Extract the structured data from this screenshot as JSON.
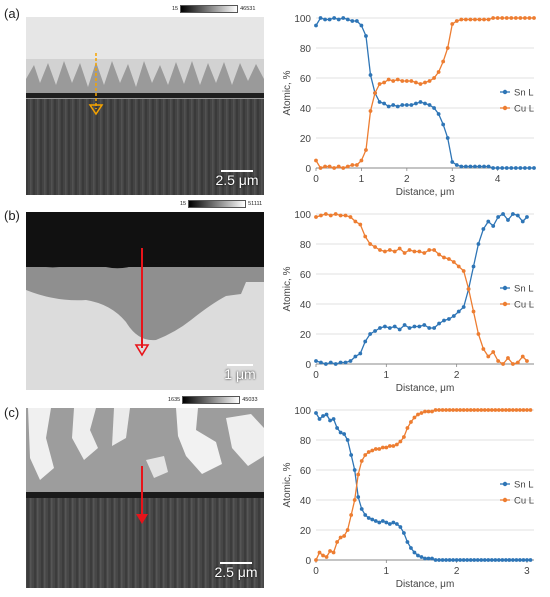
{
  "panels": [
    {
      "label": "(a)",
      "colorbar": {
        "min": "15",
        "max": "46531"
      },
      "scale_bar": "2.5 μm",
      "arrow_color": "#f5a300",
      "chart_data": {
        "type": "line",
        "xlabel": "Distance, μm",
        "ylabel": "Atomic, %",
        "xlim": [
          0,
          4.8
        ],
        "ylim": [
          0,
          100
        ],
        "xticks": [
          "0",
          "1",
          "2",
          "3",
          "4"
        ],
        "yticks": [
          "0",
          "20",
          "40",
          "60",
          "80",
          "100"
        ],
        "grid": true,
        "legend_position": "right",
        "series": [
          {
            "name": "Sn L",
            "color": "#2e75b6",
            "x": [
              0,
              0.1,
              0.2,
              0.3,
              0.4,
              0.5,
              0.6,
              0.7,
              0.8,
              0.9,
              1.0,
              1.1,
              1.2,
              1.3,
              1.4,
              1.5,
              1.6,
              1.7,
              1.8,
              1.9,
              2.0,
              2.1,
              2.2,
              2.3,
              2.4,
              2.5,
              2.6,
              2.7,
              2.8,
              2.9,
              3.0,
              3.1,
              3.2,
              3.3,
              3.4,
              3.5,
              3.6,
              3.7,
              3.8,
              3.9,
              4.0,
              4.1,
              4.2,
              4.3,
              4.4,
              4.5,
              4.6,
              4.7,
              4.8
            ],
            "y": [
              95,
              100,
              99,
              99,
              100,
              99,
              100,
              99,
              98,
              98,
              95,
              88,
              62,
              50,
              44,
              43,
              41,
              42,
              41,
              42,
              42,
              42,
              43,
              44,
              43,
              42,
              40,
              36,
              29,
              20,
              4,
              2,
              1,
              1,
              1,
              1,
              1,
              1,
              1,
              0,
              0,
              0,
              0,
              0,
              0,
              0,
              0,
              0,
              0
            ]
          },
          {
            "name": "Cu L",
            "color": "#ed7d31",
            "x": [
              0,
              0.1,
              0.2,
              0.3,
              0.4,
              0.5,
              0.6,
              0.7,
              0.8,
              0.9,
              1.0,
              1.1,
              1.2,
              1.3,
              1.4,
              1.5,
              1.6,
              1.7,
              1.8,
              1.9,
              2.0,
              2.1,
              2.2,
              2.3,
              2.4,
              2.5,
              2.6,
              2.7,
              2.8,
              2.9,
              3.0,
              3.1,
              3.2,
              3.3,
              3.4,
              3.5,
              3.6,
              3.7,
              3.8,
              3.9,
              4.0,
              4.1,
              4.2,
              4.3,
              4.4,
              4.5,
              4.6,
              4.7,
              4.8
            ],
            "y": [
              5,
              0,
              1,
              1,
              0,
              1,
              0,
              1,
              2,
              2,
              5,
              12,
              38,
              50,
              56,
              57,
              59,
              58,
              59,
              58,
              58,
              58,
              57,
              56,
              57,
              58,
              60,
              64,
              71,
              80,
              96,
              98,
              99,
              99,
              99,
              99,
              99,
              99,
              99,
              100,
              100,
              100,
              100,
              100,
              100,
              100,
              100,
              100,
              100
            ]
          }
        ]
      }
    },
    {
      "label": "(b)",
      "colorbar": {
        "min": "15",
        "max": "51111"
      },
      "scale_bar": "1 μm",
      "arrow_color": "#e8141a",
      "chart_data": {
        "type": "line",
        "xlabel": "Distance, μm",
        "ylabel": "Atomic, %",
        "xlim": [
          0,
          3.1
        ],
        "ylim": [
          0,
          100
        ],
        "xticks": [
          "0",
          "1",
          "2"
        ],
        "yticks": [
          "0",
          "20",
          "40",
          "60",
          "80",
          "100"
        ],
        "grid": true,
        "legend_position": "right",
        "series": [
          {
            "name": "Sn L",
            "color": "#2e75b6",
            "x": [
              0,
              0.07,
              0.14,
              0.21,
              0.28,
              0.35,
              0.42,
              0.49,
              0.56,
              0.63,
              0.7,
              0.77,
              0.84,
              0.91,
              0.98,
              1.05,
              1.12,
              1.19,
              1.26,
              1.33,
              1.4,
              1.47,
              1.54,
              1.61,
              1.68,
              1.75,
              1.82,
              1.89,
              1.96,
              2.03,
              2.1,
              2.17,
              2.24,
              2.31,
              2.38,
              2.45,
              2.52,
              2.59,
              2.66,
              2.73,
              2.8,
              2.87,
              2.94,
              3.0
            ],
            "y": [
              2,
              1,
              0,
              1,
              0,
              1,
              1,
              2,
              5,
              7,
              15,
              20,
              22,
              24,
              25,
              24,
              25,
              23,
              26,
              24,
              25,
              25,
              26,
              24,
              24,
              27,
              29,
              30,
              32,
              35,
              38,
              50,
              65,
              80,
              90,
              95,
              92,
              98,
              100,
              96,
              100,
              99,
              95,
              98
            ]
          },
          {
            "name": "Cu L",
            "color": "#ed7d31",
            "x": [
              0,
              0.07,
              0.14,
              0.21,
              0.28,
              0.35,
              0.42,
              0.49,
              0.56,
              0.63,
              0.7,
              0.77,
              0.84,
              0.91,
              0.98,
              1.05,
              1.12,
              1.19,
              1.26,
              1.33,
              1.4,
              1.47,
              1.54,
              1.61,
              1.68,
              1.75,
              1.82,
              1.89,
              1.96,
              2.03,
              2.1,
              2.17,
              2.24,
              2.31,
              2.38,
              2.45,
              2.52,
              2.59,
              2.66,
              2.73,
              2.8,
              2.87,
              2.94,
              3.0
            ],
            "y": [
              98,
              99,
              100,
              99,
              100,
              99,
              99,
              98,
              95,
              93,
              85,
              80,
              78,
              76,
              75,
              76,
              75,
              77,
              74,
              76,
              75,
              75,
              74,
              76,
              76,
              73,
              71,
              70,
              68,
              65,
              62,
              50,
              35,
              20,
              10,
              5,
              8,
              2,
              0,
              4,
              0,
              1,
              5,
              2
            ]
          }
        ]
      }
    },
    {
      "label": "(c)",
      "colorbar": {
        "min": "1635",
        "max": "45033"
      },
      "scale_bar": "2.5 μm",
      "arrow_color": "#e8141a",
      "chart_data": {
        "type": "line",
        "xlabel": "Distance, μm",
        "ylabel": "Atomic, %",
        "xlim": [
          0,
          3.1
        ],
        "ylim": [
          0,
          100
        ],
        "xticks": [
          "0",
          "1",
          "2",
          "3"
        ],
        "yticks": [
          "0",
          "20",
          "40",
          "60",
          "80",
          "100"
        ],
        "grid": true,
        "legend_position": "right",
        "series": [
          {
            "name": "Sn L",
            "color": "#2e75b6",
            "x": [
              0,
              0.05,
              0.1,
              0.15,
              0.2,
              0.25,
              0.3,
              0.35,
              0.4,
              0.45,
              0.5,
              0.55,
              0.6,
              0.65,
              0.7,
              0.75,
              0.8,
              0.85,
              0.9,
              0.95,
              1.0,
              1.05,
              1.1,
              1.15,
              1.2,
              1.25,
              1.3,
              1.35,
              1.4,
              1.45,
              1.5,
              1.55,
              1.6,
              1.65,
              1.7,
              1.75,
              1.8,
              1.85,
              1.9,
              1.95,
              2.0,
              2.05,
              2.1,
              2.15,
              2.2,
              2.25,
              2.3,
              2.35,
              2.4,
              2.45,
              2.5,
              2.55,
              2.6,
              2.65,
              2.7,
              2.75,
              2.8,
              2.85,
              2.9,
              2.95,
              3.0,
              3.05
            ],
            "y": [
              98,
              94,
              96,
              97,
              93,
              94,
              88,
              85,
              84,
              80,
              70,
              60,
              42,
              34,
              30,
              28,
              27,
              26,
              25,
              26,
              25,
              24,
              25,
              24,
              22,
              18,
              12,
              8,
              5,
              3,
              2,
              1,
              1,
              1,
              0,
              0,
              0,
              0,
              0,
              0,
              0,
              0,
              0,
              0,
              0,
              0,
              0,
              0,
              0,
              0,
              0,
              0,
              0,
              0,
              0,
              0,
              0,
              0,
              0,
              0,
              0,
              0
            ]
          },
          {
            "name": "Cu L",
            "color": "#ed7d31",
            "x": [
              0,
              0.05,
              0.1,
              0.15,
              0.2,
              0.25,
              0.3,
              0.35,
              0.4,
              0.45,
              0.5,
              0.55,
              0.6,
              0.65,
              0.7,
              0.75,
              0.8,
              0.85,
              0.9,
              0.95,
              1.0,
              1.05,
              1.1,
              1.15,
              1.2,
              1.25,
              1.3,
              1.35,
              1.4,
              1.45,
              1.5,
              1.55,
              1.6,
              1.65,
              1.7,
              1.75,
              1.8,
              1.85,
              1.9,
              1.95,
              2.0,
              2.05,
              2.1,
              2.15,
              2.2,
              2.25,
              2.3,
              2.35,
              2.4,
              2.45,
              2.5,
              2.55,
              2.6,
              2.65,
              2.7,
              2.75,
              2.8,
              2.85,
              2.9,
              2.95,
              3.0,
              3.05
            ],
            "y": [
              0,
              5,
              3,
              2,
              6,
              5,
              12,
              15,
              16,
              20,
              30,
              40,
              57,
              66,
              70,
              72,
              73,
              74,
              74,
              75,
              75,
              76,
              76,
              77,
              79,
              82,
              88,
              92,
              95,
              97,
              98,
              99,
              99,
              99,
              100,
              100,
              100,
              100,
              100,
              100,
              100,
              100,
              100,
              100,
              100,
              100,
              100,
              100,
              100,
              100,
              100,
              100,
              100,
              100,
              100,
              100,
              100,
              100,
              100,
              100,
              100,
              100
            ]
          }
        ]
      }
    }
  ]
}
